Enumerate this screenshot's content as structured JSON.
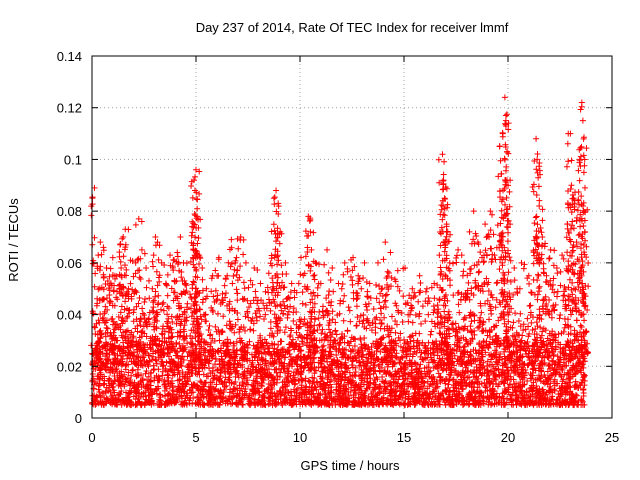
{
  "chart_data": {
    "type": "scatter",
    "title": "Day 237 of 2014, Rate Of TEC Index for receiver lmmf",
    "xlabel": "GPS time / hours",
    "ylabel": "ROTI / TECUs",
    "xlim": [
      0,
      25
    ],
    "ylim": [
      0,
      0.14
    ],
    "xticks": [
      0,
      5,
      10,
      15,
      20,
      25
    ],
    "xtick_labels": [
      "0",
      "5",
      "10",
      "15",
      "20",
      "25"
    ],
    "yticks": [
      0,
      0.02,
      0.04,
      0.06,
      0.08,
      0.1,
      0.12,
      0.14
    ],
    "ytick_labels": [
      "0",
      "0.02",
      "0.04",
      "0.06",
      "0.08",
      "0.1",
      "0.12",
      "0.14"
    ],
    "grid": true,
    "marker": "+",
    "color": "#ff0000",
    "x_data_extent": [
      0.0,
      23.7
    ],
    "dense_band_y": [
      0.005,
      0.03
    ],
    "series": [
      {
        "name": "ROTI",
        "points": [
          [
            0.12,
            0.089
          ],
          [
            0.3,
            0.063
          ],
          [
            0.4,
            0.068
          ],
          [
            0.55,
            0.066
          ],
          [
            0.7,
            0.058
          ],
          [
            0.9,
            0.045
          ],
          [
            1.0,
            0.062
          ],
          [
            1.1,
            0.055
          ],
          [
            1.35,
            0.067
          ],
          [
            1.4,
            0.058
          ],
          [
            1.5,
            0.07
          ],
          [
            1.6,
            0.073
          ],
          [
            1.75,
            0.05
          ],
          [
            1.85,
            0.061
          ],
          [
            2.1,
            0.06
          ],
          [
            2.25,
            0.077
          ],
          [
            2.4,
            0.065
          ],
          [
            2.6,
            0.058
          ],
          [
            2.9,
            0.05
          ],
          [
            3.05,
            0.07
          ],
          [
            3.15,
            0.068
          ],
          [
            3.35,
            0.06
          ],
          [
            3.55,
            0.052
          ],
          [
            3.75,
            0.063
          ],
          [
            3.95,
            0.061
          ],
          [
            4.1,
            0.064
          ],
          [
            4.25,
            0.07
          ],
          [
            4.4,
            0.06
          ],
          [
            4.5,
            0.052
          ],
          [
            4.85,
            0.062
          ],
          [
            4.9,
            0.092
          ],
          [
            4.95,
            0.088
          ],
          [
            5.0,
            0.096
          ],
          [
            5.05,
            0.078
          ],
          [
            5.15,
            0.063
          ],
          [
            5.3,
            0.058
          ],
          [
            5.5,
            0.05
          ],
          [
            5.8,
            0.055
          ],
          [
            6.1,
            0.062
          ],
          [
            6.5,
            0.055
          ],
          [
            6.7,
            0.069
          ],
          [
            6.95,
            0.062
          ],
          [
            7.15,
            0.07
          ],
          [
            7.4,
            0.06
          ],
          [
            7.8,
            0.058
          ],
          [
            8.1,
            0.052
          ],
          [
            8.5,
            0.056
          ],
          [
            8.75,
            0.085
          ],
          [
            8.85,
            0.088
          ],
          [
            8.95,
            0.083
          ],
          [
            9.05,
            0.072
          ],
          [
            9.3,
            0.06
          ],
          [
            9.6,
            0.052
          ],
          [
            10.05,
            0.062
          ],
          [
            10.4,
            0.078
          ],
          [
            10.5,
            0.072
          ],
          [
            10.55,
            0.065
          ],
          [
            10.75,
            0.06
          ],
          [
            11.0,
            0.052
          ],
          [
            11.3,
            0.065
          ],
          [
            11.55,
            0.058
          ],
          [
            11.85,
            0.052
          ],
          [
            12.15,
            0.06
          ],
          [
            12.55,
            0.062
          ],
          [
            12.8,
            0.055
          ],
          [
            13.1,
            0.06
          ],
          [
            13.35,
            0.052
          ],
          [
            13.75,
            0.06
          ],
          [
            14.1,
            0.068
          ],
          [
            14.35,
            0.064
          ],
          [
            14.7,
            0.057
          ],
          [
            15.05,
            0.058
          ],
          [
            15.4,
            0.05
          ],
          [
            15.75,
            0.055
          ],
          [
            16.1,
            0.05
          ],
          [
            16.45,
            0.052
          ],
          [
            16.7,
            0.063
          ],
          [
            16.85,
            0.102
          ],
          [
            16.9,
            0.092
          ],
          [
            16.95,
            0.085
          ],
          [
            17.05,
            0.075
          ],
          [
            17.2,
            0.06
          ],
          [
            17.6,
            0.065
          ],
          [
            17.9,
            0.06
          ],
          [
            18.15,
            0.072
          ],
          [
            18.35,
            0.08
          ],
          [
            18.55,
            0.068
          ],
          [
            18.75,
            0.062
          ],
          [
            18.9,
            0.075
          ],
          [
            19.15,
            0.08
          ],
          [
            19.35,
            0.063
          ],
          [
            19.6,
            0.105
          ],
          [
            19.75,
            0.11
          ],
          [
            19.85,
            0.124
          ],
          [
            19.9,
            0.117
          ],
          [
            19.95,
            0.092
          ],
          [
            20.1,
            0.075
          ],
          [
            20.3,
            0.058
          ],
          [
            20.65,
            0.06
          ],
          [
            21.0,
            0.055
          ],
          [
            21.35,
            0.108
          ],
          [
            21.4,
            0.1
          ],
          [
            21.5,
            0.082
          ],
          [
            21.65,
            0.07
          ],
          [
            21.85,
            0.055
          ],
          [
            22.05,
            0.065
          ],
          [
            22.35,
            0.058
          ],
          [
            22.6,
            0.063
          ],
          [
            22.85,
            0.075
          ],
          [
            23.0,
            0.11
          ],
          [
            23.05,
            0.09
          ],
          [
            23.15,
            0.085
          ],
          [
            23.3,
            0.068
          ],
          [
            23.45,
            0.1
          ],
          [
            23.55,
            0.122
          ],
          [
            23.6,
            0.115
          ],
          [
            23.65,
            0.095
          ],
          [
            23.7,
            0.072
          ]
        ]
      }
    ]
  }
}
